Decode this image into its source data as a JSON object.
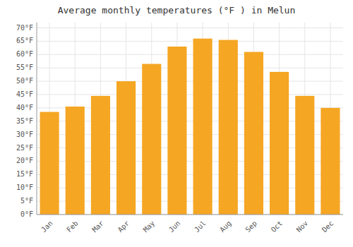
{
  "chart_data": {
    "type": "bar",
    "title": "Average monthly temperatures (°F ) in Melun",
    "categories": [
      "Jan",
      "Feb",
      "Mar",
      "Apr",
      "May",
      "Jun",
      "Jul",
      "Aug",
      "Sep",
      "Oct",
      "Nov",
      "Dec"
    ],
    "values": [
      38.5,
      40.5,
      44.5,
      50.0,
      56.5,
      63.0,
      66.0,
      65.5,
      61.0,
      53.5,
      44.5,
      40.0
    ],
    "color": "#F5A623",
    "ylim": [
      0,
      72
    ],
    "yticks": [
      {
        "value": 0,
        "label": "0°F"
      },
      {
        "value": 5,
        "label": "5°F"
      },
      {
        "value": 10,
        "label": "10°F"
      },
      {
        "value": 15,
        "label": "15°F"
      },
      {
        "value": 20,
        "label": "20°F"
      },
      {
        "value": 25,
        "label": "25°F"
      },
      {
        "value": 30,
        "label": "30°F"
      },
      {
        "value": 35,
        "label": "35°F"
      },
      {
        "value": 40,
        "label": "40°F"
      },
      {
        "value": 45,
        "label": "45°F"
      },
      {
        "value": 50,
        "label": "50°F"
      },
      {
        "value": 55,
        "label": "55°F"
      },
      {
        "value": 60,
        "label": "60°F"
      },
      {
        "value": 65,
        "label": "65°F"
      },
      {
        "value": 70,
        "label": "70°F"
      }
    ],
    "grid": true
  }
}
